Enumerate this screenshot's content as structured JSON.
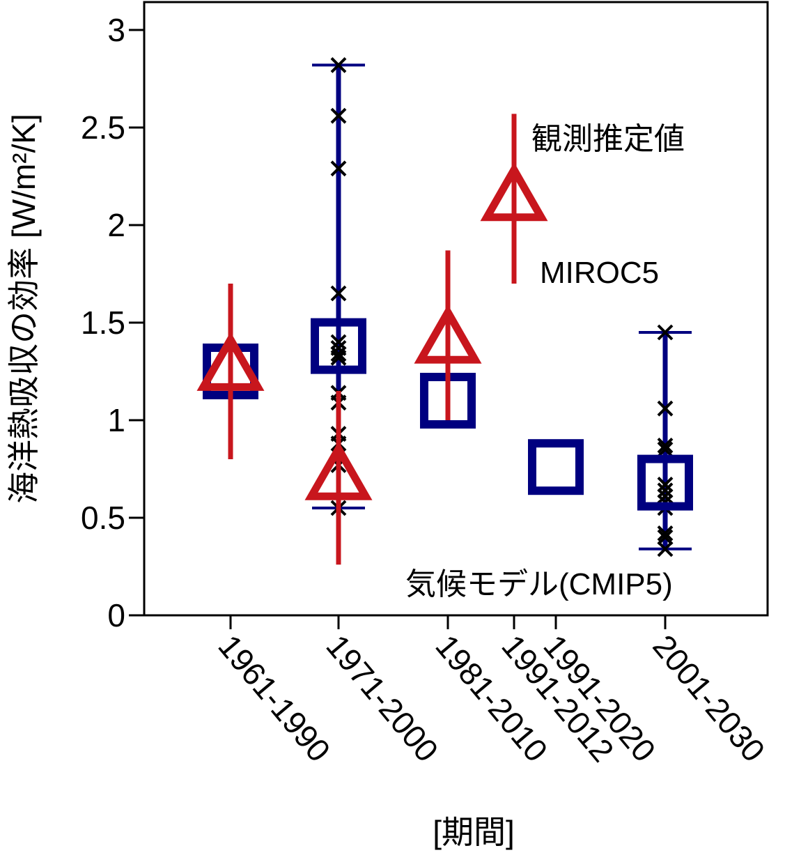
{
  "chart_data": {
    "type": "scatter",
    "title": "",
    "xlabel": "[期間]",
    "ylabel": "海洋熱吸収の効率 [W/m²/K]",
    "ylim": [
      0,
      3
    ],
    "yticks": [
      0,
      0.5,
      1,
      1.5,
      2,
      2.5,
      3
    ],
    "ytick_labels": [
      "0",
      "0.5",
      "1",
      "1.5",
      "2",
      "2.5",
      "3"
    ],
    "categories": [
      "1961-1990",
      "1971-2000",
      "1981-2010",
      "1991-2012",
      "1991-2020",
      "2001-2030"
    ],
    "grid": false,
    "legend": "none",
    "annotations": {
      "observed": "観測推定値",
      "miroc": "MIROC5",
      "cmip": "気候モデル(CMIP5)"
    },
    "colors": {
      "observed": "#c8161d",
      "model": "#000080",
      "members": "#000000"
    },
    "series": [
      {
        "kind": "observed",
        "marker": "triangle",
        "points": [
          {
            "category": "1961-1990",
            "value": 1.27,
            "low": 0.8,
            "high": 1.7
          },
          {
            "category": "1971-2000",
            "value": 0.71,
            "low": 0.26,
            "high": 1.15
          },
          {
            "category": "1981-2010",
            "value": 1.41,
            "low": 1.0,
            "high": 1.87
          },
          {
            "category": "1991-2012",
            "value": 2.14,
            "low": 1.7,
            "high": 2.57
          }
        ]
      },
      {
        "kind": "model",
        "marker": "square",
        "points": [
          {
            "category": "1961-1990",
            "value": 1.25
          },
          {
            "category": "1971-2000",
            "value": 1.38,
            "low": 0.55,
            "high": 2.82
          },
          {
            "category": "1981-2010",
            "value": 1.1
          },
          {
            "category": "1991-2020",
            "value": 0.76
          },
          {
            "category": "2001-2030",
            "value": 0.68,
            "low": 0.34,
            "high": 1.45
          }
        ]
      },
      {
        "kind": "members",
        "marker": "x",
        "points": [
          {
            "category": "1971-2000",
            "values": [
              2.82,
              2.56,
              2.29,
              1.65,
              1.4,
              1.37,
              1.34,
              1.32,
              1.14,
              1.09,
              0.93,
              0.88,
              0.77,
              0.55
            ]
          },
          {
            "category": "2001-2030",
            "values": [
              1.45,
              1.06,
              0.87,
              0.85,
              0.67,
              0.64,
              0.61,
              0.58,
              0.55,
              0.42,
              0.4,
              0.34
            ]
          }
        ]
      }
    ]
  }
}
